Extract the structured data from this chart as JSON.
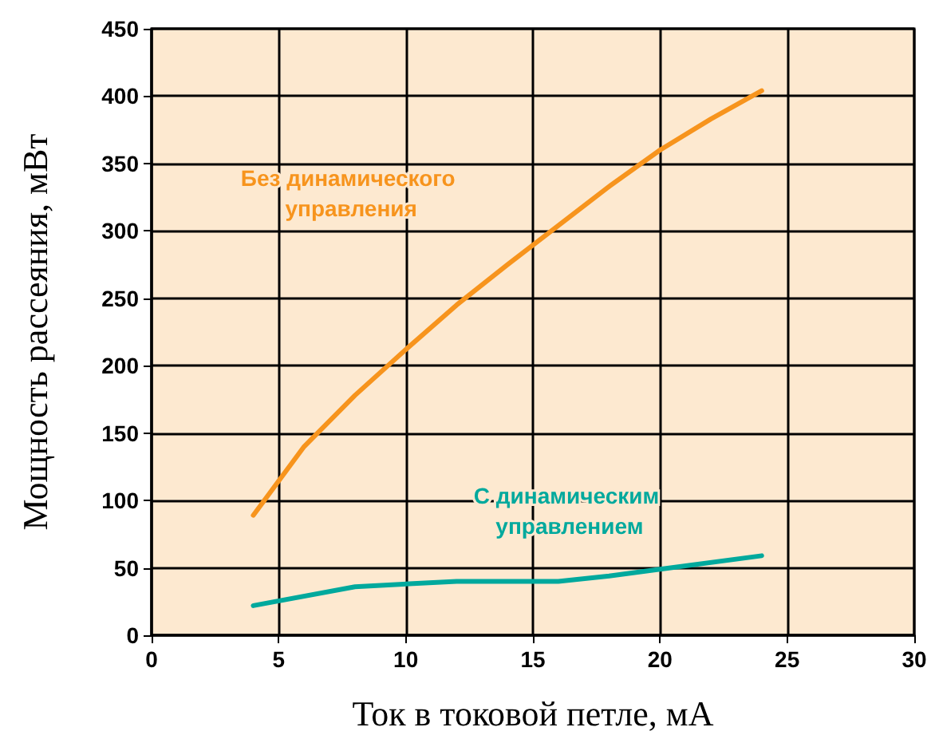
{
  "chart_data": {
    "type": "line",
    "xlabel": "Ток в токовой петле, мА",
    "ylabel": "Мощность рассеяния, мВт",
    "xlim": [
      0,
      30
    ],
    "xticks": [
      0,
      5,
      10,
      15,
      20,
      25,
      30
    ],
    "ylim": [
      0,
      450
    ],
    "yticks": [
      0,
      50,
      100,
      150,
      200,
      250,
      300,
      350,
      400,
      450
    ],
    "grid": true,
    "legend": false,
    "marker": "none",
    "line_style": "solid",
    "series": [
      {
        "name": "Без динамического управления",
        "color": "#f7941d",
        "x": [
          4,
          6,
          8,
          10,
          12,
          14,
          16,
          18,
          20,
          22,
          24
        ],
        "values": [
          89,
          140,
          178,
          212,
          245,
          275,
          304,
          333,
          360,
          383,
          404
        ]
      },
      {
        "name": "С динамическим управлением",
        "color": "#00a99d",
        "x": [
          4,
          8,
          12,
          16,
          18,
          20,
          24
        ],
        "values": [
          22,
          36,
          40,
          40,
          44,
          49,
          59
        ]
      }
    ]
  }
}
